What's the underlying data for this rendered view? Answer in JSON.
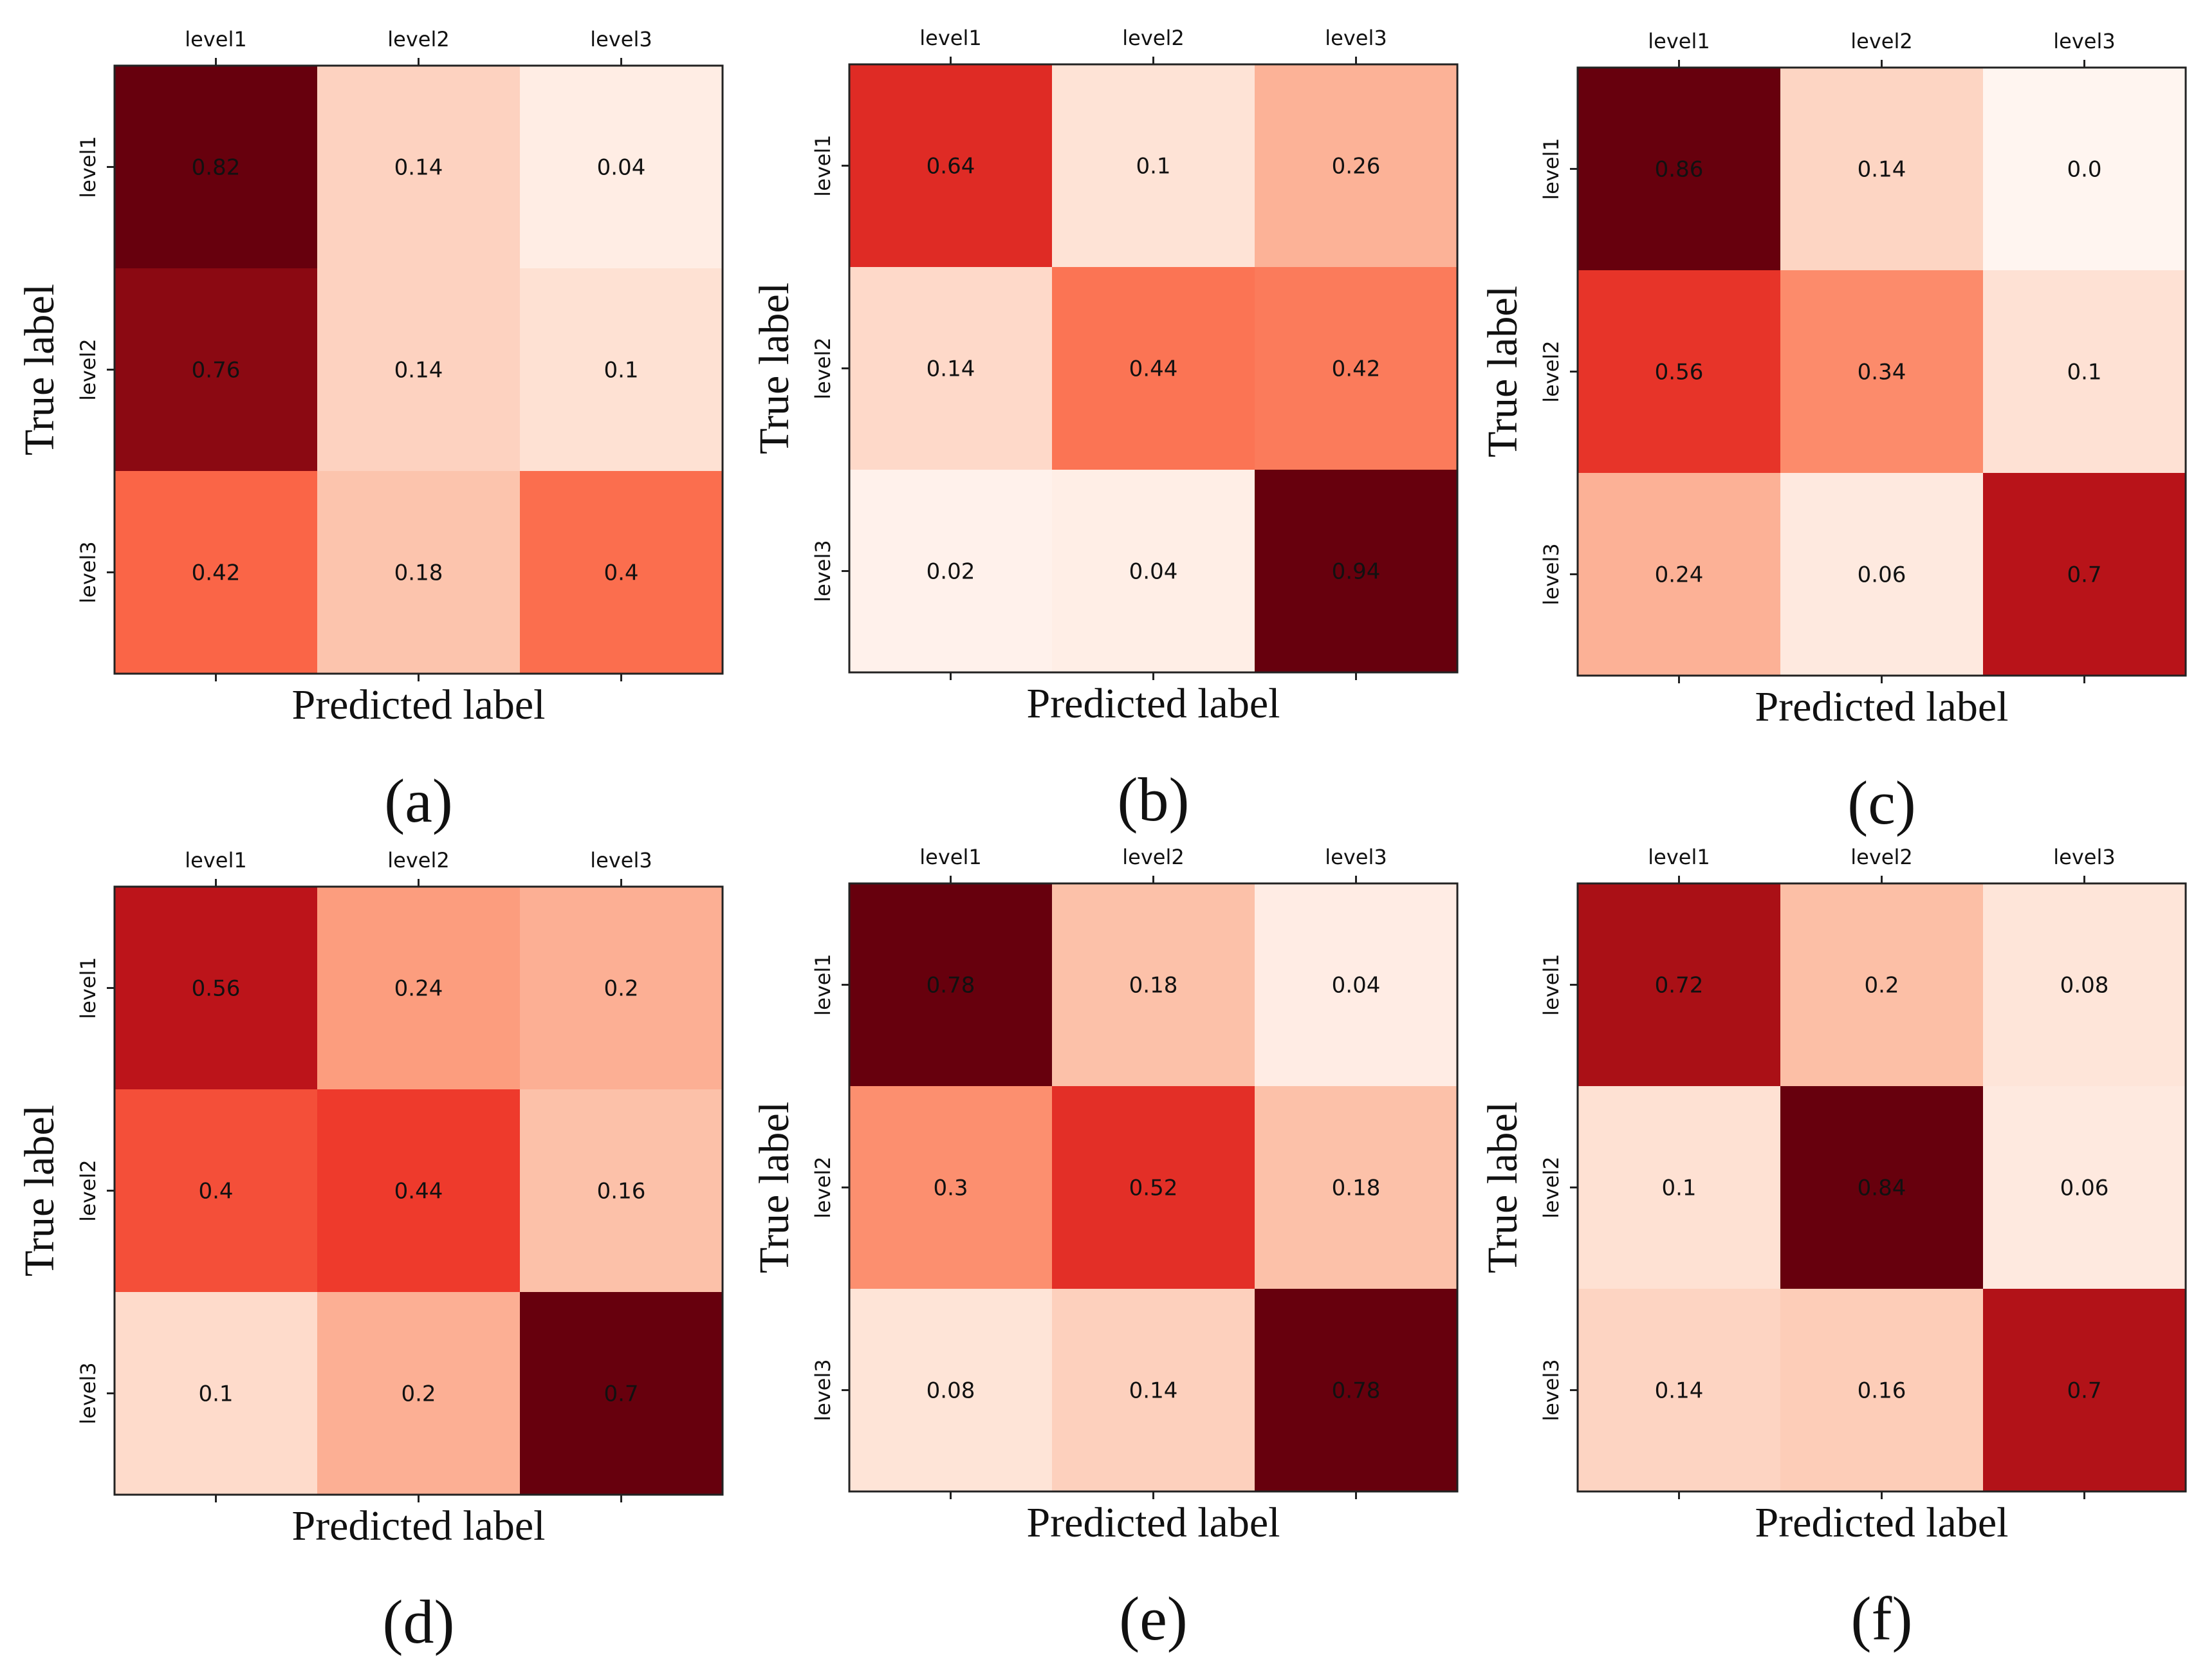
{
  "figure": {
    "colormap": [
      "#fff5f0",
      "#fee0d2",
      "#fcbba1",
      "#fc9272",
      "#fb6a4a",
      "#ef3b2c",
      "#cb181d",
      "#a50f15",
      "#67000d"
    ]
  },
  "chart_data": [
    {
      "type": "heatmap",
      "caption": "(a)",
      "x_categories": [
        "level1",
        "level2",
        "level3"
      ],
      "y_categories": [
        "level1",
        "level2",
        "level3"
      ],
      "xlabel": "Predicted label",
      "ylabel": "True label",
      "vmin": 0,
      "vmax": 0.82,
      "values": [
        [
          0.82,
          0.14,
          0.04
        ],
        [
          0.76,
          0.14,
          0.1
        ],
        [
          0.42,
          0.18,
          0.4
        ]
      ],
      "labels": [
        [
          "0.82",
          "0.14",
          "0.04"
        ],
        [
          "0.76",
          "0.14",
          "0.1"
        ],
        [
          "0.42",
          "0.18",
          "0.4"
        ]
      ]
    },
    {
      "type": "heatmap",
      "caption": "(b)",
      "x_categories": [
        "level1",
        "level2",
        "level3"
      ],
      "y_categories": [
        "level1",
        "level2",
        "level3"
      ],
      "xlabel": "Predicted label",
      "ylabel": "True label",
      "vmin": 0,
      "vmax": 0.94,
      "values": [
        [
          0.64,
          0.1,
          0.26
        ],
        [
          0.14,
          0.44,
          0.42
        ],
        [
          0.02,
          0.04,
          0.94
        ]
      ],
      "labels": [
        [
          "0.64",
          "0.1",
          "0.26"
        ],
        [
          "0.14",
          "0.44",
          "0.42"
        ],
        [
          "0.02",
          "0.04",
          "0.94"
        ]
      ]
    },
    {
      "type": "heatmap",
      "caption": "(c)",
      "x_categories": [
        "level1",
        "level2",
        "level3"
      ],
      "y_categories": [
        "level1",
        "level2",
        "level3"
      ],
      "xlabel": "Predicted label",
      "ylabel": "True label",
      "vmin": 0,
      "vmax": 0.86,
      "values": [
        [
          0.86,
          0.14,
          0.0
        ],
        [
          0.56,
          0.34,
          0.1
        ],
        [
          0.24,
          0.06,
          0.7
        ]
      ],
      "labels": [
        [
          "0.86",
          "0.14",
          "0.0"
        ],
        [
          "0.56",
          "0.34",
          "0.1"
        ],
        [
          "0.24",
          "0.06",
          "0.7"
        ]
      ]
    },
    {
      "type": "heatmap",
      "caption": "(d)",
      "x_categories": [
        "level1",
        "level2",
        "level3"
      ],
      "y_categories": [
        "level1",
        "level2",
        "level3"
      ],
      "xlabel": "Predicted label",
      "ylabel": "True label",
      "vmin": 0,
      "vmax": 0.7,
      "values": [
        [
          0.56,
          0.24,
          0.2
        ],
        [
          0.4,
          0.44,
          0.16
        ],
        [
          0.1,
          0.2,
          0.7
        ]
      ],
      "labels": [
        [
          "0.56",
          "0.24",
          "0.2"
        ],
        [
          "0.4",
          "0.44",
          "0.16"
        ],
        [
          "0.1",
          "0.2",
          "0.7"
        ]
      ]
    },
    {
      "type": "heatmap",
      "caption": "(e)",
      "x_categories": [
        "level1",
        "level2",
        "level3"
      ],
      "y_categories": [
        "level1",
        "level2",
        "level3"
      ],
      "xlabel": "Predicted label",
      "ylabel": "True label",
      "vmin": 0,
      "vmax": 0.78,
      "values": [
        [
          0.78,
          0.18,
          0.04
        ],
        [
          0.3,
          0.52,
          0.18
        ],
        [
          0.08,
          0.14,
          0.78
        ]
      ],
      "labels": [
        [
          "0.78",
          "0.18",
          "0.04"
        ],
        [
          "0.3",
          "0.52",
          "0.18"
        ],
        [
          "0.08",
          "0.14",
          "0.78"
        ]
      ]
    },
    {
      "type": "heatmap",
      "caption": "(f)",
      "x_categories": [
        "level1",
        "level2",
        "level3"
      ],
      "y_categories": [
        "level1",
        "level2",
        "level3"
      ],
      "xlabel": "Predicted label",
      "ylabel": "True label",
      "vmin": 0,
      "vmax": 0.84,
      "values": [
        [
          0.72,
          0.2,
          0.08
        ],
        [
          0.1,
          0.84,
          0.06
        ],
        [
          0.14,
          0.16,
          0.7
        ]
      ],
      "labels": [
        [
          "0.72",
          "0.2",
          "0.08"
        ],
        [
          "0.1",
          "0.84",
          "0.06"
        ],
        [
          "0.14",
          "0.16",
          "0.7"
        ]
      ]
    }
  ]
}
